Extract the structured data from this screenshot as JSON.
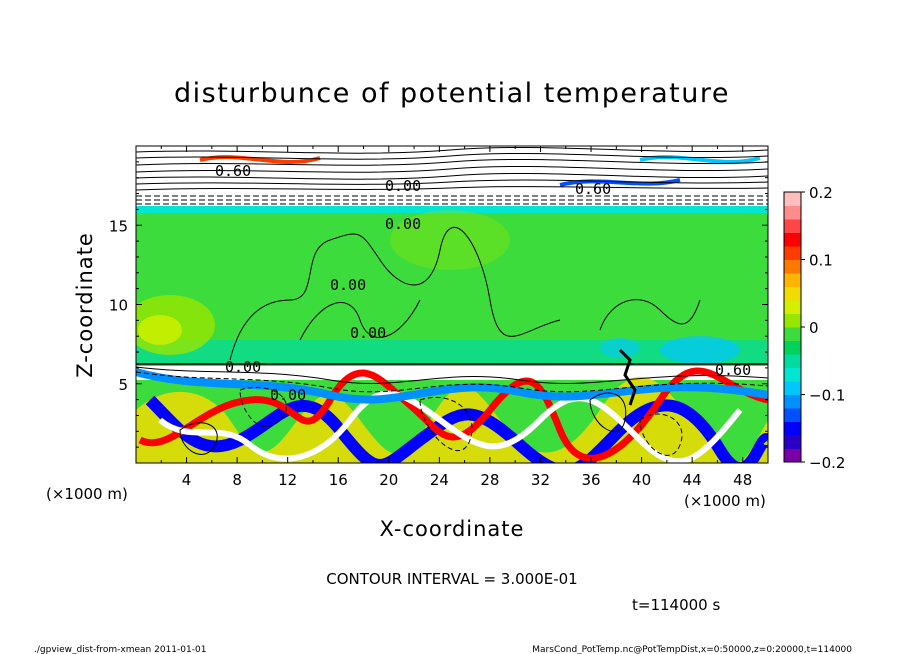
{
  "chart_data": {
    "type": "heatmap",
    "title": "disturbunce of potential temperature",
    "xlabel": "X-coordinate",
    "ylabel": "Z-coordinate",
    "x_unit": "(×1000 m)",
    "y_unit": "(×1000 m)",
    "xlim": [
      0,
      50
    ],
    "ylim": [
      0,
      20
    ],
    "x_ticks": [
      4,
      8,
      12,
      16,
      20,
      24,
      28,
      32,
      36,
      40,
      44,
      48
    ],
    "y_ticks": [
      5,
      10,
      15
    ],
    "contour_interval_text": "CONTOUR INTERVAL = 3.000E-01",
    "contour_labels": [
      "0.60",
      "0.00",
      "0.00",
      "0.00",
      "0.00",
      "0.60",
      "0.00",
      "0.60",
      "0.00"
    ],
    "time_text": "t=114000 s",
    "colorbar": {
      "min": -0.2,
      "max": 0.2,
      "ticks": [
        "0.2",
        "0.1",
        "0",
        "−0.1",
        "−0.2"
      ],
      "colors": [
        "#7a00a8",
        "#2a00c8",
        "#0000ff",
        "#0050ff",
        "#0090ff",
        "#00c8ff",
        "#00e6d2",
        "#00dca0",
        "#00d25a",
        "#3cdc3c",
        "#96e600",
        "#d2f000",
        "#f0dc00",
        "#ffb400",
        "#ff7800",
        "#ff3c00",
        "#ff0000",
        "#ff4646",
        "#ff8c8c",
        "#ffbebe"
      ]
    }
  },
  "footer": {
    "left": "./gpview_dist-from-xmean  2011-01-01",
    "right": "MarsCond_PotTemp.nc@PotTempDist,x=0:50000,z=0:20000,t=114000"
  }
}
